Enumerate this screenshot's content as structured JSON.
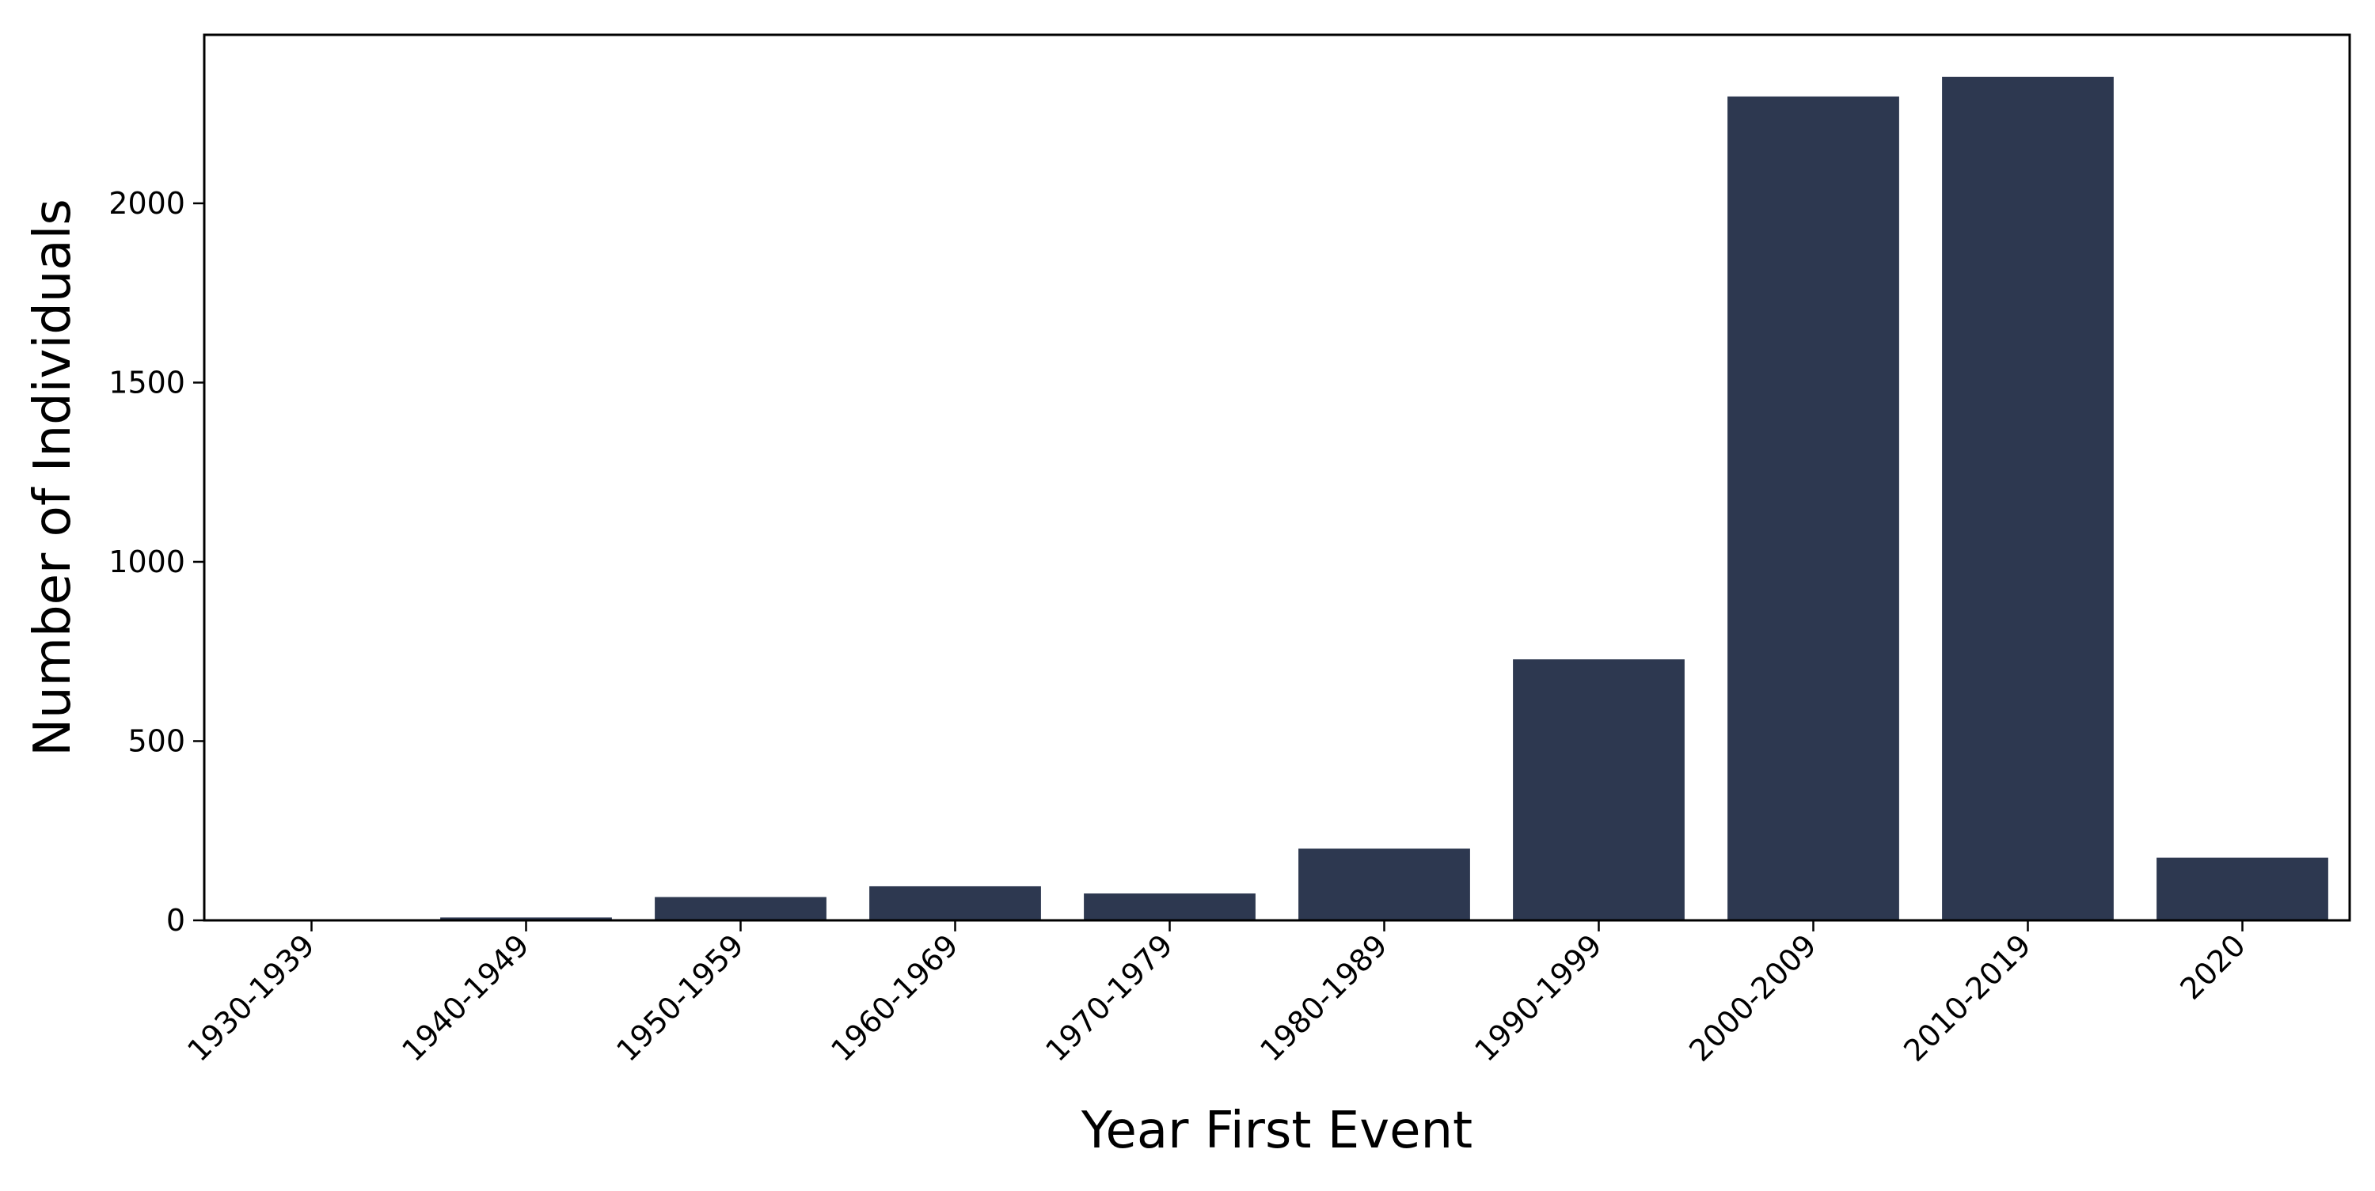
{
  "chart_data": {
    "type": "bar",
    "categories": [
      "1930-1939",
      "1940-1949",
      "1950-1959",
      "1960-1969",
      "1970-1979",
      "1980-1989",
      "1990-1999",
      "2000-2009",
      "2010-2019",
      "2020"
    ],
    "values": [
      2,
      8,
      65,
      95,
      75,
      200,
      728,
      2298,
      2353,
      175
    ],
    "xlabel": "Year First Event",
    "ylabel": "Number of Individuals",
    "ylim": [
      0,
      2470
    ],
    "yticks": [
      0,
      500,
      1000,
      1500,
      2000
    ],
    "grid": false,
    "bar_color": "#2d3850"
  }
}
